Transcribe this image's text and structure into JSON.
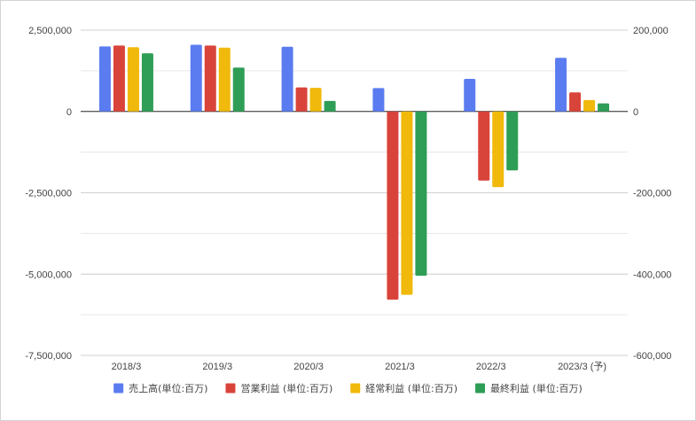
{
  "chart_data": {
    "type": "bar",
    "categories": [
      "2018/3",
      "2019/3",
      "2020/3",
      "2021/3",
      "2022/3",
      "2023/3 (予)"
    ],
    "series": [
      {
        "name": "売上高(単位:百万)",
        "axis": "left",
        "color": "#5b7cf0",
        "values": [
          2000000,
          2050000,
          1990000,
          720000,
          1000000,
          1650000
        ]
      },
      {
        "name": "営業利益 (単位:百万)",
        "axis": "right",
        "color": "#d9443a",
        "values": [
          162000,
          162000,
          59000,
          -463000,
          -170000,
          47000
        ]
      },
      {
        "name": "経常利益 (単位:百万)",
        "axis": "right",
        "color": "#f0b90b",
        "values": [
          158000,
          157000,
          58000,
          -451000,
          -186000,
          28000
        ]
      },
      {
        "name": "最終利益 (単位:百万)",
        "axis": "right",
        "color": "#2e9e56",
        "values": [
          143000,
          108000,
          26000,
          -404000,
          -145000,
          20000
        ]
      }
    ],
    "left_axis": {
      "ylim": [
        -7500000,
        2500000
      ],
      "ticks": [
        2500000,
        0,
        -2500000,
        -5000000,
        -7500000
      ],
      "tick_labels": [
        "2,500,000",
        "0",
        "-2,500,000",
        "-5,000,000",
        "-7,500,000"
      ]
    },
    "right_axis": {
      "ylim": [
        -600000,
        200000
      ],
      "ticks": [
        200000,
        0,
        -200000,
        -400000,
        -600000
      ],
      "tick_labels": [
        "200,000",
        "0",
        "-200,000",
        "-400,000",
        "-600,000"
      ]
    },
    "grid": true,
    "legend_position": "bottom"
  }
}
